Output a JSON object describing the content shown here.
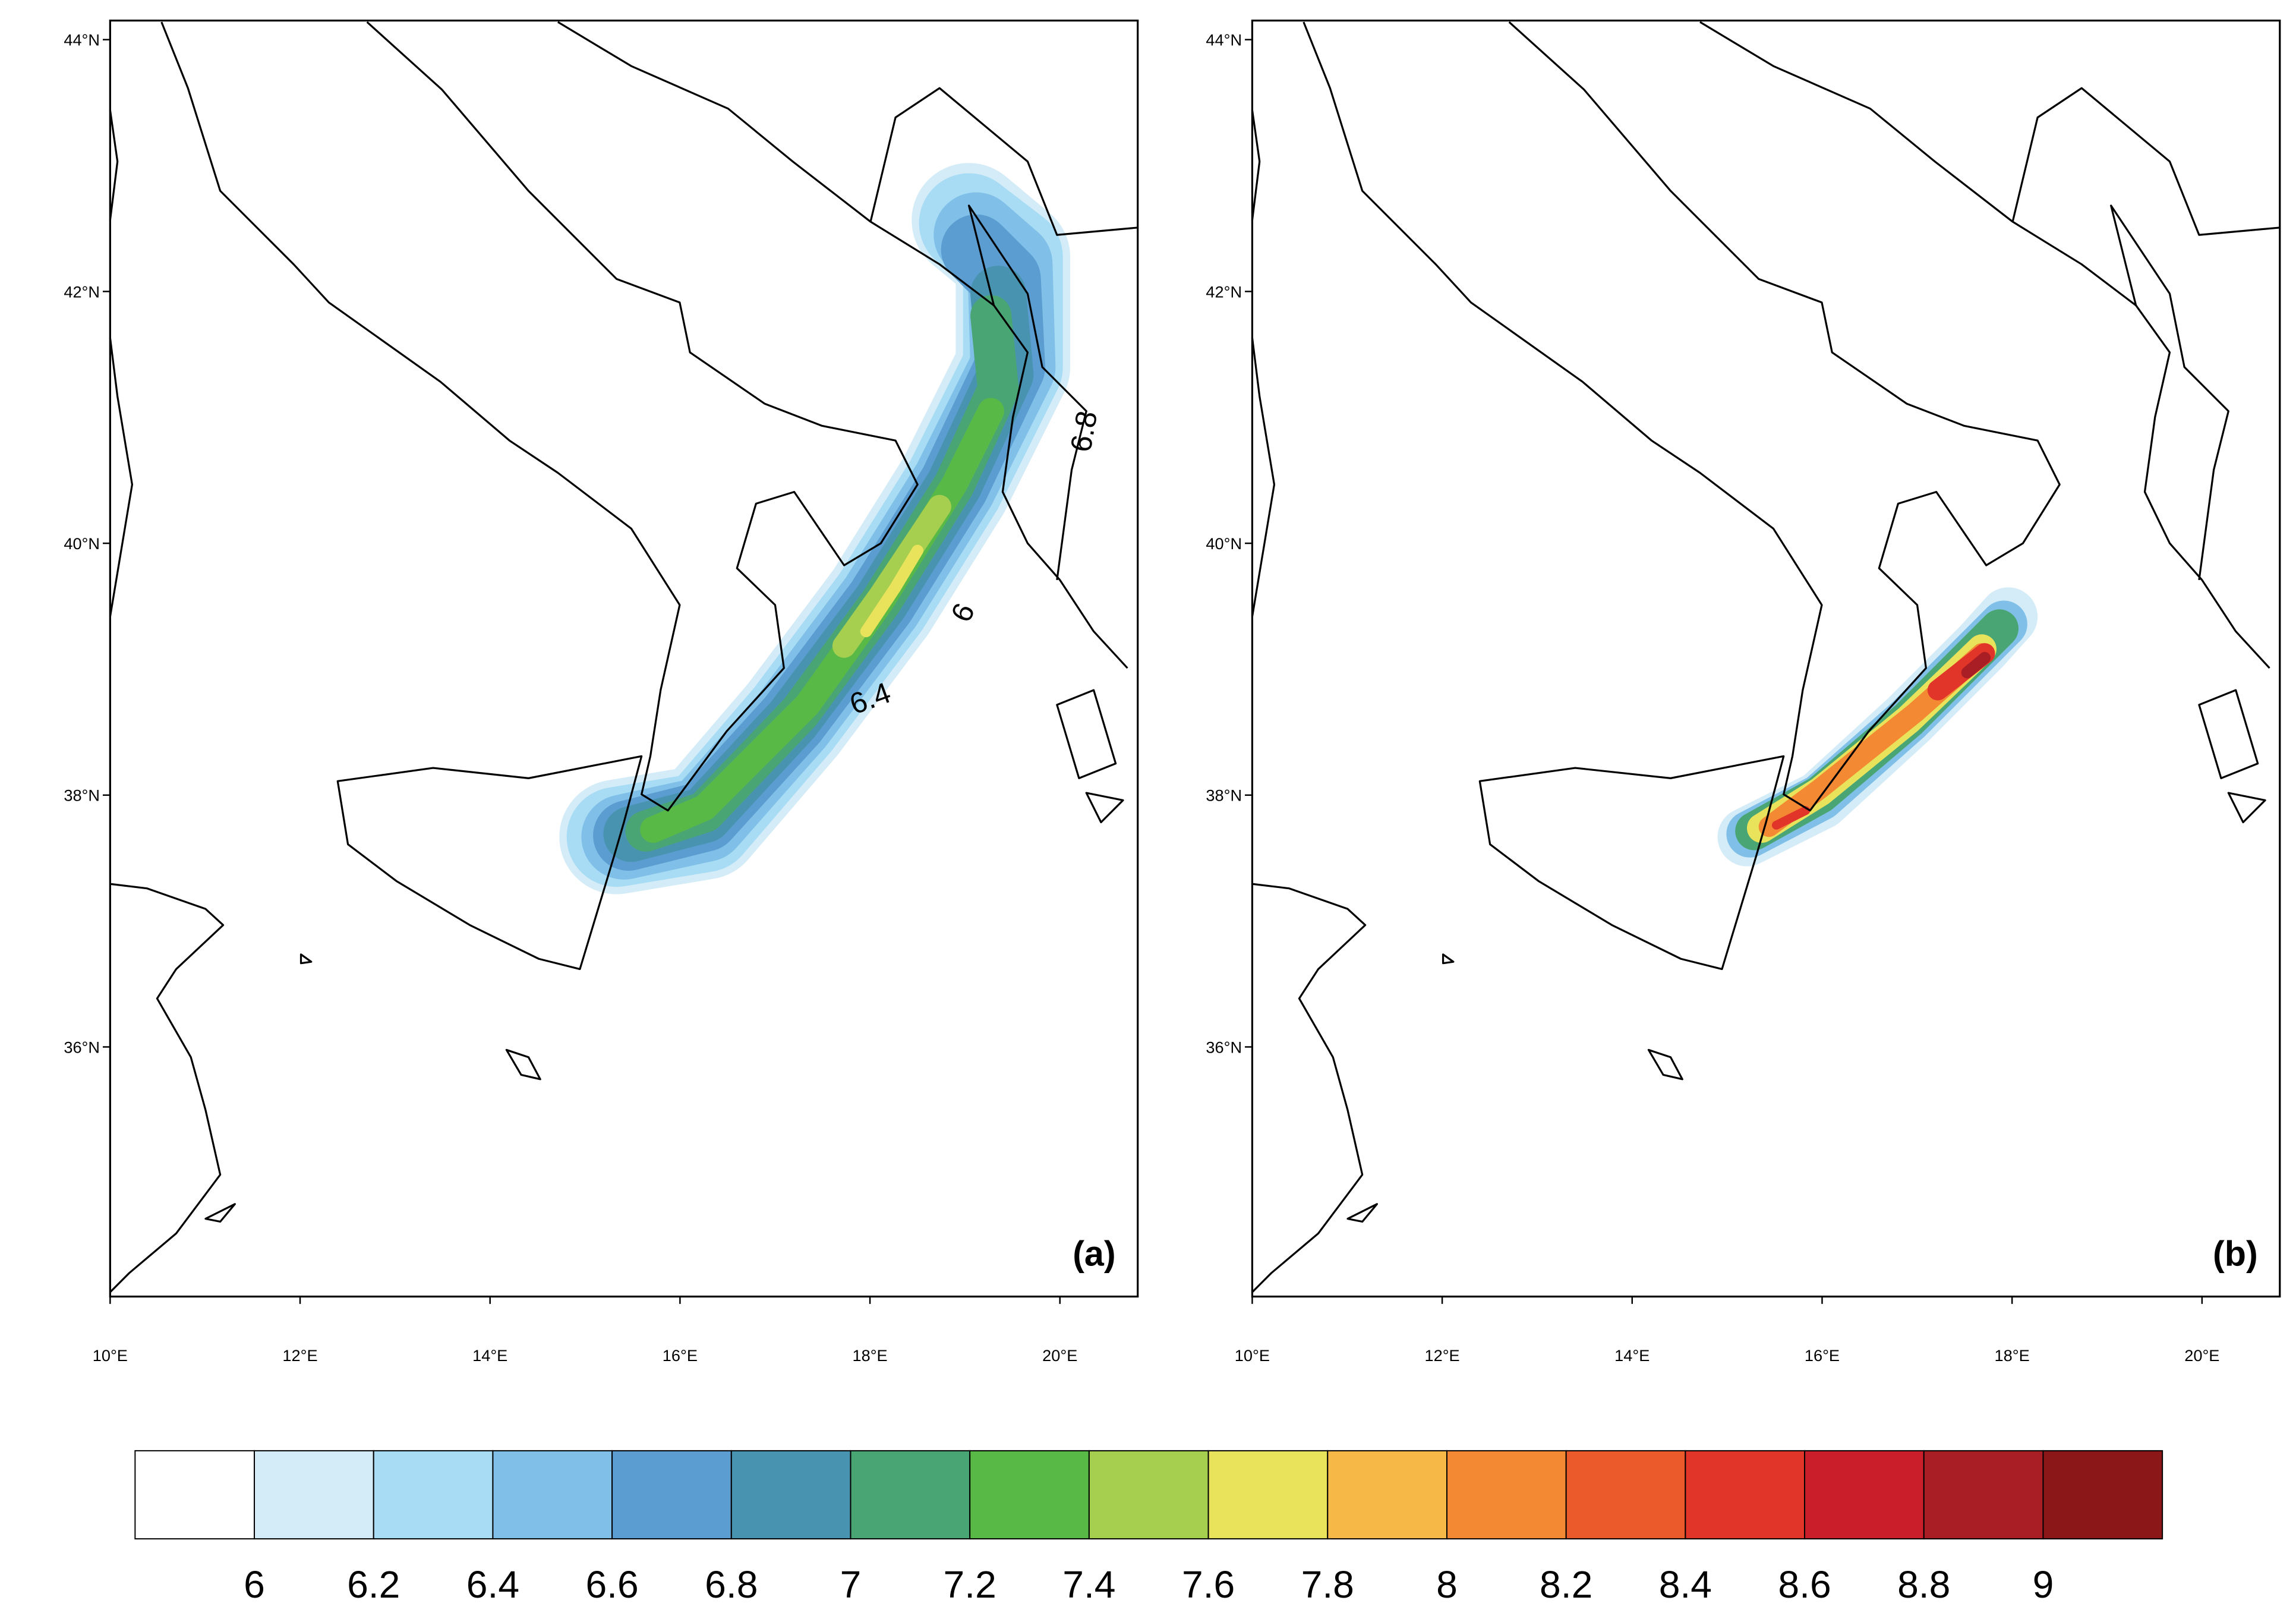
{
  "lat_ticks": [
    "44°N",
    "42°N",
    "40°N",
    "38°N",
    "36°N"
  ],
  "lon_ticks": [
    "10°E",
    "12°E",
    "14°E",
    "16°E",
    "18°E",
    "20°E"
  ],
  "panels": [
    {
      "label": "(a)",
      "contour_labels": [
        "6.8",
        "6",
        "6.4"
      ]
    },
    {
      "label": "(b)"
    }
  ],
  "colorbar": {
    "levels": [
      6,
      6.2,
      6.4,
      6.6,
      6.8,
      7,
      7.2,
      7.4,
      7.6,
      7.8,
      8,
      8.2,
      8.4,
      8.6,
      8.8,
      9
    ],
    "colors": [
      "#ffffff",
      "#d4ecf8",
      "#a8dcf4",
      "#80c0e8",
      "#5b9dd0",
      "#4893b0",
      "#4aa575",
      "#58b947",
      "#a6cf4f",
      "#e8e35a",
      "#f6b846",
      "#f38933",
      "#eb5a2a",
      "#e1352a",
      "#ca1f2a",
      "#a81e24",
      "#8b1719"
    ]
  }
}
